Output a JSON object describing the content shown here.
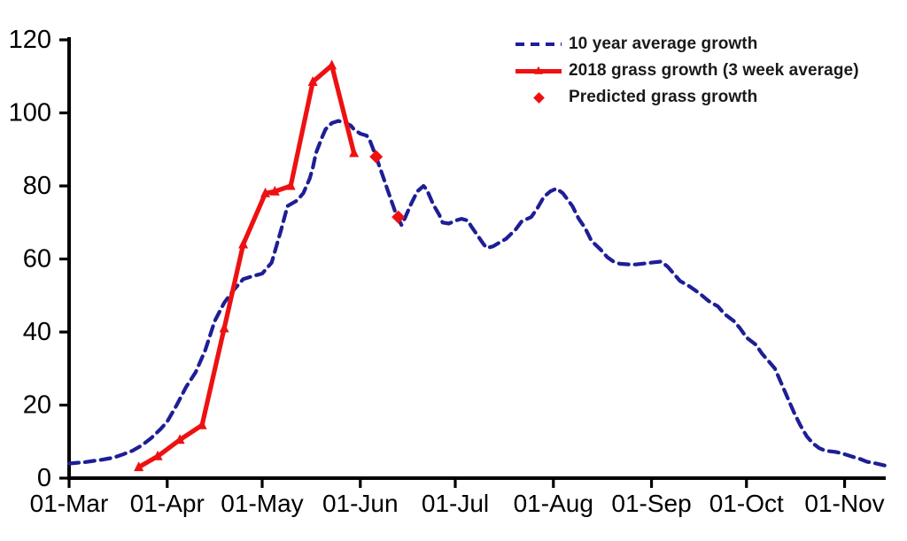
{
  "colors": {
    "blue_line": "#1e1e96",
    "red_line": "#ee1111",
    "axis": "#000000",
    "tick_text": "#000000",
    "legend_text": "#1a1a1a",
    "background": "#ffffff"
  },
  "legend": {
    "position": "top-right",
    "items": [
      {
        "label": "10 year average growth",
        "swatch": "blue-dashed-line"
      },
      {
        "label": "2018 grass growth (3 week average)",
        "swatch": "red-solid-line-triangle-marker"
      },
      {
        "label": "Predicted grass growth",
        "swatch": "red-diamond"
      }
    ]
  },
  "chart_data": {
    "type": "line",
    "title": "",
    "xlabel": "",
    "ylabel": "",
    "grid": false,
    "legend_position": "top-right",
    "x_axis": {
      "unit": "days since 01-Mar",
      "domain_days": [
        0,
        258
      ],
      "tick_labels": [
        "01-Mar",
        "01-Apr",
        "01-May",
        "01-Jun",
        "01-Jul",
        "01-Aug",
        "01-Sep",
        "01-Oct",
        "01-Nov"
      ],
      "tick_days": [
        0,
        31,
        61,
        92,
        122,
        153,
        184,
        214,
        245
      ]
    },
    "y_axis": {
      "ticks": [
        0,
        20,
        40,
        60,
        80,
        100,
        120
      ],
      "range": [
        0,
        120
      ]
    },
    "series": [
      {
        "name": "10 year average growth",
        "type": "line",
        "line_style": "dashed",
        "marker": "none",
        "color": "#1e1e96",
        "points": [
          [
            0,
            4
          ],
          [
            5,
            4.4
          ],
          [
            10,
            5
          ],
          [
            14,
            5.6
          ],
          [
            17,
            6.5
          ],
          [
            20,
            7.5
          ],
          [
            23,
            9
          ],
          [
            26,
            11
          ],
          [
            29,
            13.5
          ],
          [
            31,
            15.5
          ],
          [
            34,
            20
          ],
          [
            37,
            25
          ],
          [
            40,
            29
          ],
          [
            43,
            35
          ],
          [
            46,
            43
          ],
          [
            49,
            48
          ],
          [
            52,
            51.5
          ],
          [
            55,
            54.5
          ],
          [
            58,
            55.3
          ],
          [
            61,
            56
          ],
          [
            64,
            59
          ],
          [
            67,
            68
          ],
          [
            69,
            74.5
          ],
          [
            72,
            76
          ],
          [
            74,
            78
          ],
          [
            76,
            82
          ],
          [
            77,
            85
          ],
          [
            78,
            89
          ],
          [
            80,
            93.5
          ],
          [
            81,
            95.5
          ],
          [
            83,
            97.2
          ],
          [
            85,
            97.8
          ],
          [
            87,
            97.4
          ],
          [
            89,
            96.5
          ],
          [
            90,
            95.5
          ],
          [
            92,
            94.3
          ],
          [
            94,
            93.8
          ],
          [
            95,
            92.5
          ],
          [
            97,
            88
          ],
          [
            99,
            83
          ],
          [
            101,
            78
          ],
          [
            103,
            73
          ],
          [
            105,
            69.3
          ],
          [
            106,
            71
          ],
          [
            108,
            75
          ],
          [
            110,
            78.5
          ],
          [
            112,
            80
          ],
          [
            113,
            79
          ],
          [
            115,
            75
          ],
          [
            117,
            72
          ],
          [
            118,
            70
          ],
          [
            120,
            69.7
          ],
          [
            122,
            70.5
          ],
          [
            124,
            71
          ],
          [
            126,
            70.5
          ],
          [
            127,
            69
          ],
          [
            129,
            66.5
          ],
          [
            131,
            64
          ],
          [
            132,
            63
          ],
          [
            134,
            63.5
          ],
          [
            136,
            64.5
          ],
          [
            138,
            65.5
          ],
          [
            141,
            68
          ],
          [
            143,
            70.3
          ],
          [
            146,
            71.5
          ],
          [
            148,
            74
          ],
          [
            150,
            77
          ],
          [
            152,
            78.5
          ],
          [
            154,
            79.3
          ],
          [
            156,
            78
          ],
          [
            159,
            74.5
          ],
          [
            161,
            71
          ],
          [
            163,
            68.5
          ],
          [
            165,
            65
          ],
          [
            168,
            62.5
          ],
          [
            170,
            60.5
          ],
          [
            172,
            59.3
          ],
          [
            174,
            58.7
          ],
          [
            177,
            58.5
          ],
          [
            179,
            58.5
          ],
          [
            182,
            58.8
          ],
          [
            184,
            59
          ],
          [
            187,
            59.3
          ],
          [
            189,
            58
          ],
          [
            191,
            56
          ],
          [
            193,
            54
          ],
          [
            196,
            52.5
          ],
          [
            198,
            51.3
          ],
          [
            200,
            50
          ],
          [
            202,
            48.5
          ],
          [
            205,
            47
          ],
          [
            207,
            45
          ],
          [
            210,
            43
          ],
          [
            212,
            41
          ],
          [
            214,
            38.5
          ],
          [
            217,
            36.5
          ],
          [
            219,
            34
          ],
          [
            221,
            32
          ],
          [
            223,
            30
          ],
          [
            225,
            26
          ],
          [
            227,
            22
          ],
          [
            229,
            18
          ],
          [
            231,
            14.5
          ],
          [
            233,
            11.5
          ],
          [
            235,
            9.5
          ],
          [
            237,
            8.2
          ],
          [
            239,
            7.5
          ],
          [
            242,
            7.2
          ],
          [
            244,
            6.8
          ],
          [
            247,
            6
          ],
          [
            250,
            5.2
          ],
          [
            252,
            4.5
          ],
          [
            255,
            4
          ],
          [
            258,
            3.4
          ]
        ]
      },
      {
        "name": "2018 grass growth (3 week average)",
        "type": "line",
        "line_style": "solid",
        "marker": "triangle",
        "color": "#ee1111",
        "points": [
          [
            22,
            3
          ],
          [
            28,
            6
          ],
          [
            35,
            10.5
          ],
          [
            42,
            14.5
          ],
          [
            49,
            41
          ],
          [
            55,
            64
          ],
          [
            62,
            78
          ],
          [
            65,
            78.5
          ],
          [
            70,
            80
          ],
          [
            77,
            108.5
          ],
          [
            83,
            113
          ],
          [
            90,
            89
          ]
        ]
      },
      {
        "name": "Predicted grass growth",
        "type": "scatter",
        "marker": "diamond",
        "color": "#ee1111",
        "points": [
          [
            97,
            88
          ],
          [
            104,
            71.5
          ]
        ]
      }
    ]
  }
}
